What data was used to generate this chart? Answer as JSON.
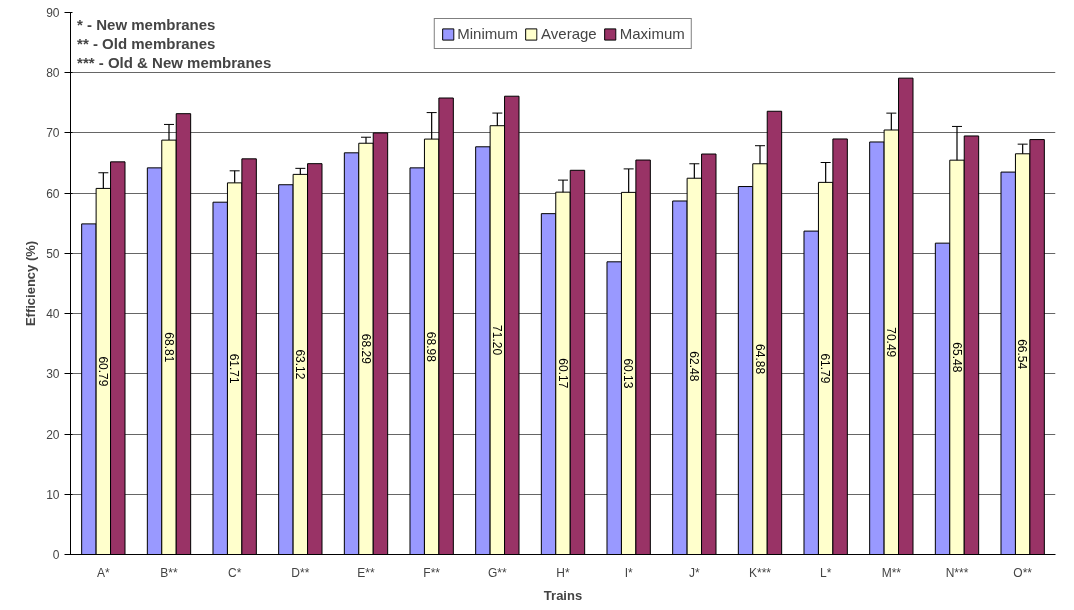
{
  "chart_data": {
    "type": "bar",
    "xlabel": "Trains",
    "ylabel": "Efficiency (%)",
    "categories": [
      "A*",
      "B**",
      "C*",
      "D**",
      "E**",
      "F**",
      "G**",
      "H*",
      "I*",
      "J*",
      "K***",
      "L*",
      "M**",
      "N***",
      "O**"
    ],
    "series": [
      {
        "name": "Minimum",
        "color": "#9999ff",
        "values": [
          54.9,
          64.2,
          58.5,
          61.4,
          66.7,
          64.2,
          67.7,
          56.6,
          48.6,
          58.7,
          61.1,
          53.7,
          68.5,
          51.7,
          63.5
        ]
      },
      {
        "name": "Average",
        "color": "#ffffcc",
        "values": [
          60.79,
          68.81,
          61.71,
          63.12,
          68.29,
          68.98,
          71.2,
          60.17,
          60.13,
          62.48,
          64.88,
          61.79,
          70.49,
          65.48,
          66.54
        ],
        "errors": [
          2.6,
          2.6,
          2.0,
          1.0,
          1.0,
          4.4,
          2.1,
          2.0,
          3.9,
          2.4,
          3.0,
          3.3,
          2.8,
          5.6,
          1.6
        ],
        "value_labels": [
          "60.79",
          "68.81",
          "61.71",
          "63.12",
          "68.29",
          "68.98",
          "71.20",
          "60.17",
          "60.13",
          "62.48",
          "64.88",
          "61.79",
          "70.49",
          "65.48",
          "66.54"
        ]
      },
      {
        "name": "Maximum",
        "color": "#993366",
        "values": [
          65.2,
          73.2,
          65.7,
          64.9,
          70.0,
          75.8,
          76.1,
          63.8,
          65.5,
          66.5,
          73.6,
          69.0,
          79.1,
          69.5,
          68.9
        ]
      }
    ],
    "ylim": [
      0,
      90
    ],
    "yticks": [
      0,
      10,
      20,
      30,
      40,
      50,
      60,
      70,
      80,
      90
    ],
    "grid": "y",
    "legend": "top",
    "annotations": [
      "*     -  New membranes",
      "**   -  Old membranes",
      "***  -  Old & New membranes"
    ]
  }
}
